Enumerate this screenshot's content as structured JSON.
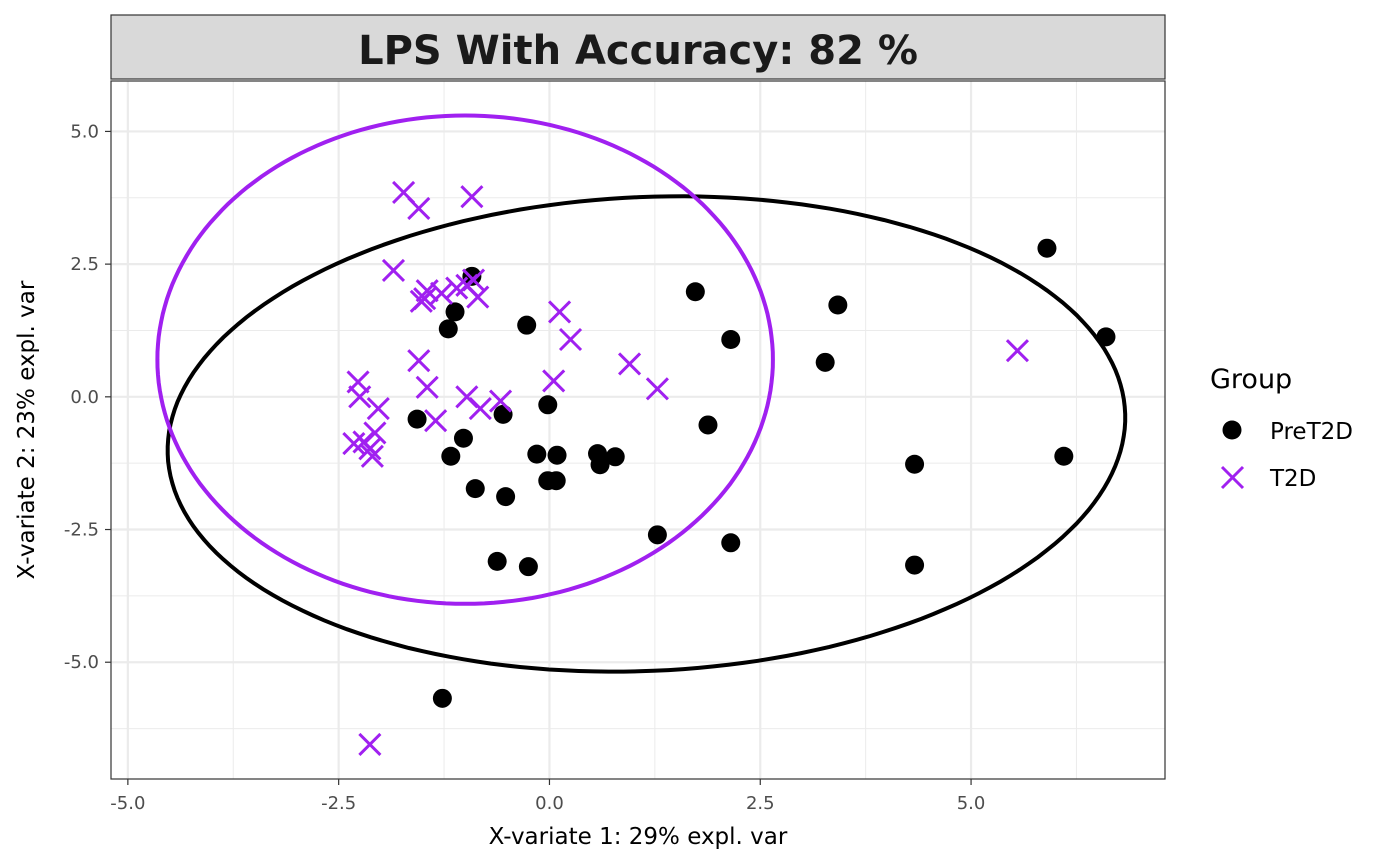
{
  "chart_data": {
    "type": "scatter",
    "title": "LPS With Accuracy: 82 %",
    "xlabel": "X-variate 1: 29% expl. var",
    "ylabel": "X-variate 2: 23% expl. var",
    "xlim": [
      -5.2,
      7.3
    ],
    "ylim": [
      -7.2,
      5.95
    ],
    "xticks": [
      -5.0,
      -2.5,
      0.0,
      2.5,
      5.0
    ],
    "xtick_labels": [
      "-5.0",
      "-2.5",
      "0.0",
      "2.5",
      "5.0"
    ],
    "yticks": [
      5.0,
      2.5,
      0.0,
      -2.5,
      -5.0
    ],
    "ytick_labels": [
      "5.0",
      "2.5",
      "0.0",
      "-2.5",
      "-5.0"
    ],
    "legend": {
      "title": "Group",
      "position": "right",
      "entries": [
        "PreT2D",
        "T2D"
      ]
    },
    "colors": {
      "PreT2D": "#000000",
      "T2D": "#a020f0"
    },
    "series": [
      {
        "name": "PreT2D",
        "marker": "circle",
        "color": "#000000",
        "x": [
          5.9,
          6.6,
          3.42,
          1.73,
          2.15,
          3.27,
          1.88,
          6.1,
          4.33,
          4.33,
          2.15,
          1.28,
          -0.27,
          -1.12,
          -1.2,
          -0.92,
          -1.57,
          -0.55,
          -0.02,
          -1.02,
          -1.17,
          -0.15,
          0.09,
          0.57,
          0.6,
          0.78,
          -0.88,
          -0.52,
          -0.02,
          0.08,
          -0.62,
          -0.25,
          -1.27
        ],
        "y": [
          2.8,
          1.13,
          1.73,
          1.98,
          1.08,
          0.65,
          -0.53,
          -1.12,
          -1.27,
          -3.17,
          -2.75,
          -2.6,
          1.35,
          1.6,
          1.28,
          2.27,
          -0.42,
          -0.33,
          -0.15,
          -0.78,
          -1.12,
          -1.08,
          -1.1,
          -1.07,
          -1.28,
          -1.13,
          -1.73,
          -1.88,
          -1.58,
          -1.58,
          -3.1,
          -3.2,
          -5.68
        ]
      },
      {
        "name": "T2D",
        "marker": "x",
        "color": "#a020f0",
        "x": [
          -1.73,
          -1.55,
          -0.92,
          -1.85,
          -1.45,
          -1.48,
          -1.52,
          -1.28,
          -1.1,
          -0.98,
          -0.9,
          -0.85,
          0.12,
          0.25,
          -1.55,
          -1.45,
          -2.27,
          -2.25,
          -2.03,
          -1.35,
          -0.98,
          -0.82,
          -0.58,
          0.05,
          0.95,
          1.28,
          -2.07,
          -2.32,
          -2.2,
          -2.13,
          -2.1,
          5.55,
          -2.13
        ],
        "y": [
          3.85,
          3.55,
          3.77,
          2.38,
          2.0,
          1.85,
          1.8,
          1.95,
          2.05,
          2.1,
          2.2,
          1.88,
          1.6,
          1.08,
          0.68,
          0.18,
          0.28,
          0.0,
          -0.22,
          -0.45,
          0.0,
          -0.22,
          -0.08,
          0.3,
          0.62,
          0.15,
          -0.68,
          -0.88,
          -0.85,
          -0.98,
          -1.12,
          0.87,
          -6.55
        ]
      }
    ],
    "ellipses": [
      {
        "group": "PreT2D",
        "color": "#000000",
        "center": [
          1.15,
          -0.7
        ],
        "semi_axes": [
          5.7,
          4.45
        ],
        "rotation_deg": 8
      },
      {
        "group": "T2D",
        "color": "#a020f0",
        "center": [
          -1.0,
          0.7
        ],
        "semi_axes": [
          3.65,
          4.6
        ],
        "rotation_deg": 0
      }
    ]
  }
}
